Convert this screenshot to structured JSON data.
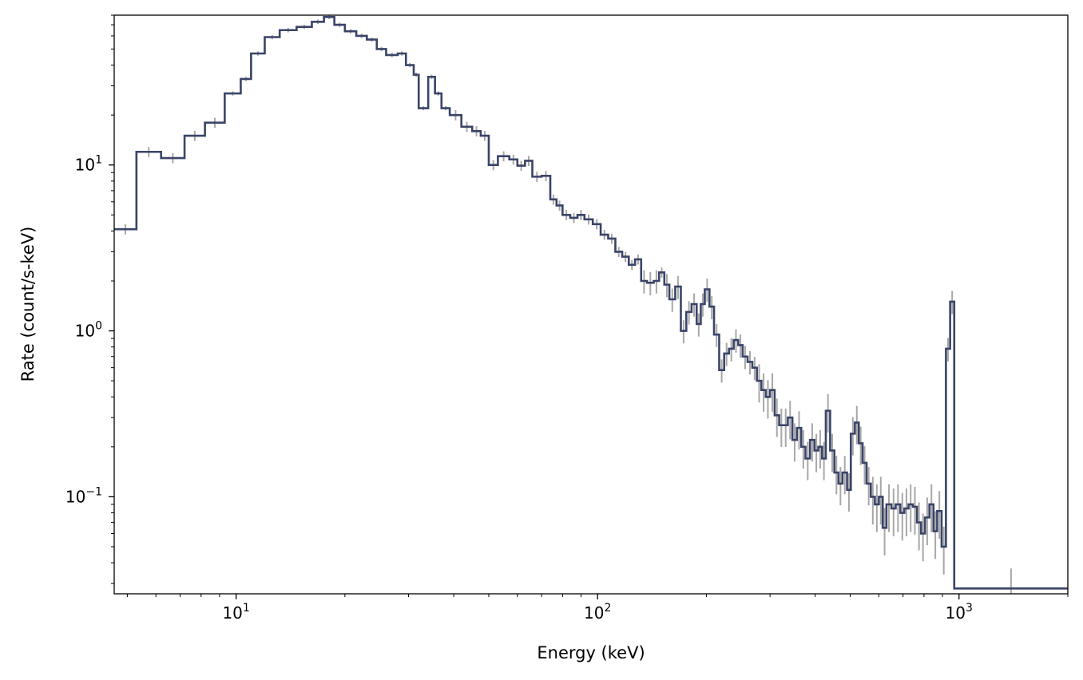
{
  "chart_data": {
    "type": "line",
    "title": "",
    "xlabel": "Energy (keV)",
    "ylabel": "Rate (count/s-keV)",
    "xscale": "log",
    "yscale": "log",
    "xlim": [
      4.6,
      2000
    ],
    "ylim": [
      0.026,
      80
    ],
    "grid": false,
    "legend": "none",
    "line_color": "#3a4468",
    "errorbar_color": "#a8a8a8",
    "x_ticks": [
      {
        "value": 10,
        "base": "10",
        "exp": "1"
      },
      {
        "value": 100,
        "base": "10",
        "exp": "2"
      },
      {
        "value": 1000,
        "base": "10",
        "exp": "3"
      }
    ],
    "y_ticks": [
      {
        "value": 0.1,
        "base": "10",
        "exp": "−1"
      },
      {
        "value": 1,
        "base": "10",
        "exp": "0"
      },
      {
        "value": 10,
        "base": "10",
        "exp": "1"
      }
    ],
    "series": [
      {
        "style": "step-post",
        "points": [
          [
            4.6,
            4.1
          ],
          [
            5.3,
            12.0
          ],
          [
            6.2,
            11.0
          ],
          [
            7.2,
            15.0
          ],
          [
            8.2,
            18.0
          ],
          [
            9.3,
            27.0
          ],
          [
            10.3,
            33.0
          ],
          [
            11.0,
            47.0
          ],
          [
            12.0,
            59.0
          ],
          [
            13.2,
            65.0
          ],
          [
            14.7,
            68.0
          ],
          [
            16.2,
            73.0
          ],
          [
            17.5,
            78.0
          ],
          [
            18.7,
            70.0
          ],
          [
            20.0,
            64.0
          ],
          [
            21.5,
            60.0
          ],
          [
            23.0,
            57.0
          ],
          [
            24.5,
            50.0
          ],
          [
            26.0,
            46.0
          ],
          [
            28.0,
            47.0
          ],
          [
            29.5,
            40.0
          ],
          [
            31.0,
            35.0
          ],
          [
            32.0,
            22.0
          ],
          [
            34.0,
            34.0
          ],
          [
            35.5,
            27.0
          ],
          [
            37.0,
            22.0
          ],
          [
            39.0,
            20.0
          ],
          [
            42.0,
            17.0
          ],
          [
            45.0,
            16.0
          ],
          [
            47.5,
            15.0
          ],
          [
            50.0,
            10.0
          ],
          [
            53.0,
            11.3
          ],
          [
            57.0,
            10.8
          ],
          [
            60.0,
            9.9
          ],
          [
            63.0,
            10.6
          ],
          [
            66.0,
            8.5
          ],
          [
            70.0,
            8.6
          ],
          [
            74.0,
            6.2
          ],
          [
            77.0,
            5.7
          ],
          [
            80.0,
            5.0
          ],
          [
            84.0,
            4.8
          ],
          [
            88.0,
            5.0
          ],
          [
            92.0,
            4.7
          ],
          [
            97.0,
            4.4
          ],
          [
            102.0,
            3.8
          ],
          [
            107.0,
            3.6
          ],
          [
            112.0,
            3.0
          ],
          [
            117.0,
            2.8
          ],
          [
            122.0,
            2.5
          ],
          [
            127.0,
            2.7
          ],
          [
            132.0,
            2.0
          ],
          [
            137.0,
            1.95
          ],
          [
            143.0,
            2.0
          ],
          [
            148.0,
            2.25
          ],
          [
            153.0,
            1.9
          ],
          [
            158.0,
            1.55
          ],
          [
            164.0,
            1.85
          ],
          [
            170.0,
            1.0
          ],
          [
            176.0,
            1.3
          ],
          [
            182.0,
            1.45
          ],
          [
            188.0,
            1.1
          ],
          [
            193.0,
            1.45
          ],
          [
            198.0,
            1.78
          ],
          [
            204.0,
            1.4
          ],
          [
            210.0,
            0.95
          ],
          [
            217.0,
            0.58
          ],
          [
            224.0,
            0.73
          ],
          [
            231.0,
            0.78
          ],
          [
            238.0,
            0.88
          ],
          [
            245.0,
            0.82
          ],
          [
            252.0,
            0.7
          ],
          [
            260.0,
            0.65
          ],
          [
            268.0,
            0.6
          ],
          [
            276.0,
            0.5
          ],
          [
            284.0,
            0.44
          ],
          [
            292.0,
            0.4
          ],
          [
            300.0,
            0.44
          ],
          [
            309.0,
            0.31
          ],
          [
            318.0,
            0.27
          ],
          [
            327.0,
            0.27
          ],
          [
            336.0,
            0.3
          ],
          [
            346.0,
            0.22
          ],
          [
            356.0,
            0.26
          ],
          [
            366.0,
            0.2
          ],
          [
            376.0,
            0.17
          ],
          [
            387.0,
            0.22
          ],
          [
            398.0,
            0.19
          ],
          [
            408.0,
            0.2
          ],
          [
            418.0,
            0.17
          ],
          [
            428.0,
            0.33
          ],
          [
            440.0,
            0.19
          ],
          [
            452.0,
            0.14
          ],
          [
            464.0,
            0.12
          ],
          [
            476.0,
            0.14
          ],
          [
            490.0,
            0.11
          ],
          [
            502.0,
            0.24
          ],
          [
            515.0,
            0.28
          ],
          [
            528.0,
            0.21
          ],
          [
            541.0,
            0.16
          ],
          [
            555.0,
            0.12
          ],
          [
            570.0,
            0.1
          ],
          [
            585.0,
            0.09
          ],
          [
            600.0,
            0.1
          ],
          [
            615.0,
            0.065
          ],
          [
            630.0,
            0.09
          ],
          [
            650.0,
            0.085
          ],
          [
            668.0,
            0.09
          ],
          [
            688.0,
            0.08
          ],
          [
            706.0,
            0.085
          ],
          [
            725.0,
            0.09
          ],
          [
            745.0,
            0.087
          ],
          [
            765.0,
            0.07
          ],
          [
            785.0,
            0.06
          ],
          [
            805.0,
            0.075
          ],
          [
            828.0,
            0.09
          ],
          [
            850.0,
            0.062
          ],
          [
            870.0,
            0.082
          ],
          [
            895.0,
            0.05
          ],
          [
            920.0,
            0.78
          ],
          [
            945.0,
            1.5
          ],
          [
            970.0,
            0.028
          ],
          [
            2000.0,
            0.028
          ]
        ]
      }
    ]
  }
}
